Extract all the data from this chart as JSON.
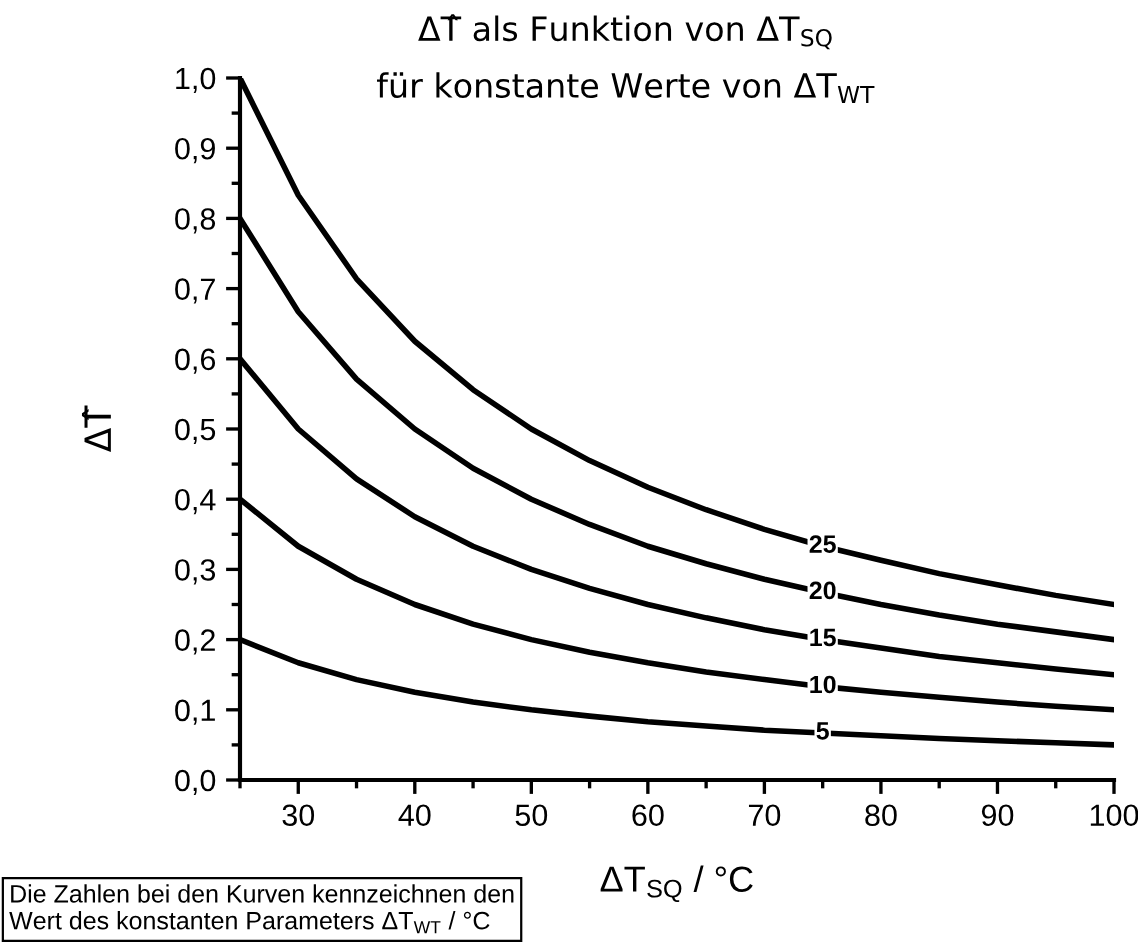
{
  "chart_data": {
    "type": "line",
    "title": "ΔT̂ als Funktion von ΔT$_{SQ}$\nfür konstante Werte von ΔT$_{WT}$",
    "xlabel": "ΔT$_{SQ}$ / °C",
    "ylabel": "ΔT̂",
    "x": [
      25,
      30,
      35,
      40,
      45,
      50,
      55,
      60,
      65,
      70,
      75,
      80,
      85,
      90,
      95,
      100
    ],
    "series": [
      {
        "name": "5",
        "color": "#000000",
        "values": [
          0.2,
          0.167,
          0.143,
          0.125,
          0.111,
          0.1,
          0.091,
          0.083,
          0.077,
          0.071,
          0.067,
          0.063,
          0.059,
          0.056,
          0.053,
          0.05
        ]
      },
      {
        "name": "10",
        "color": "#000000",
        "values": [
          0.4,
          0.333,
          0.286,
          0.25,
          0.222,
          0.2,
          0.182,
          0.167,
          0.154,
          0.143,
          0.133,
          0.125,
          0.118,
          0.111,
          0.105,
          0.1
        ]
      },
      {
        "name": "15",
        "color": "#000000",
        "values": [
          0.6,
          0.5,
          0.429,
          0.375,
          0.333,
          0.3,
          0.273,
          0.25,
          0.231,
          0.214,
          0.2,
          0.188,
          0.176,
          0.167,
          0.158,
          0.15
        ]
      },
      {
        "name": "20",
        "color": "#000000",
        "values": [
          0.8,
          0.667,
          0.571,
          0.5,
          0.444,
          0.4,
          0.364,
          0.333,
          0.308,
          0.286,
          0.267,
          0.25,
          0.235,
          0.222,
          0.211,
          0.2
        ]
      },
      {
        "name": "25",
        "color": "#000000",
        "values": [
          1.0,
          0.833,
          0.714,
          0.625,
          0.556,
          0.5,
          0.455,
          0.417,
          0.385,
          0.357,
          0.333,
          0.313,
          0.294,
          0.278,
          0.263,
          0.25
        ]
      }
    ],
    "xlim": [
      25,
      100
    ],
    "ylim": [
      0,
      1.0
    ],
    "xticks": [
      30,
      40,
      50,
      60,
      70,
      80,
      90,
      100
    ],
    "yticks": [
      {
        "value": 0,
        "label": "0,0"
      },
      {
        "value": 0.1,
        "label": "0,1"
      },
      {
        "value": 0.2,
        "label": "0,2"
      },
      {
        "value": 0.3,
        "label": "0,3"
      },
      {
        "value": 0.4,
        "label": "0,4"
      },
      {
        "value": 0.5,
        "label": "0,5"
      },
      {
        "value": 0.6,
        "label": "0,6"
      },
      {
        "value": 0.7,
        "label": "0,7"
      },
      {
        "value": 0.8,
        "label": "0,8"
      },
      {
        "value": 0.9,
        "label": "0,9"
      },
      {
        "value": 1.0,
        "label": "1,0"
      }
    ],
    "grid": false,
    "legend": false,
    "marker": "none",
    "line_style": "solid",
    "annotations": [
      "Die Zahlen bei den Kurven kennzeichnen den\nWert des konstanten Parameters ΔT$_{WT}$ / °C"
    ]
  }
}
